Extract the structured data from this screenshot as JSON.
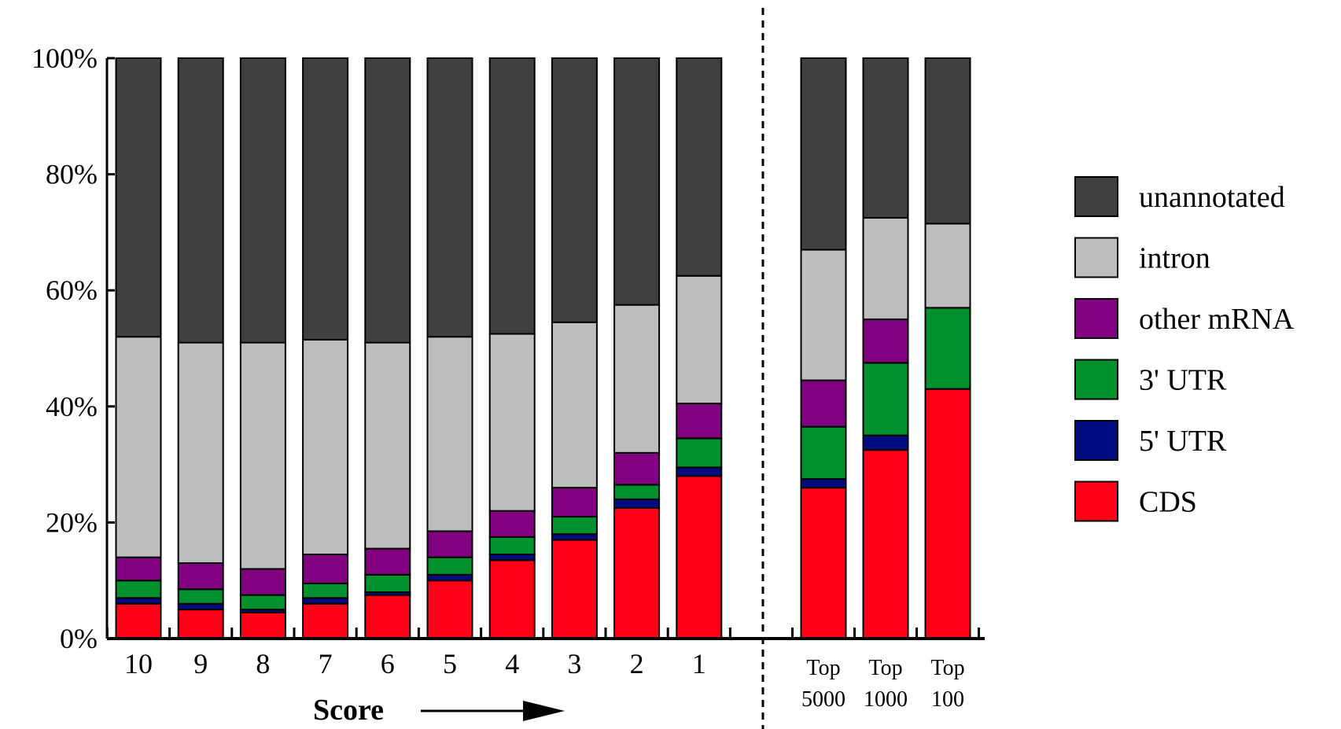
{
  "chart_data": {
    "type": "bar",
    "stacked": true,
    "xlabel": "Score",
    "ylabel": "",
    "ylim": [
      0,
      100
    ],
    "y_ticks": [
      "0%",
      "20%",
      "40%",
      "60%",
      "80%",
      "100%"
    ],
    "y_tick_values": [
      0,
      20,
      40,
      60,
      80,
      100
    ],
    "legend_position": "right",
    "groups": [
      {
        "categories": [
          "10",
          "9",
          "8",
          "7",
          "6",
          "5",
          "4",
          "3",
          "2",
          "1"
        ],
        "series": [
          {
            "name": "CDS",
            "color": "#ff0016",
            "values": [
              6,
              5,
              4.5,
              6,
              7.5,
              10,
              13.5,
              17,
              22.5,
              28
            ]
          },
          {
            "name": "5' UTR",
            "color": "#000c80",
            "values": [
              1,
              1,
              0.5,
              1,
              0.5,
              1,
              1,
              1,
              1.5,
              1.5
            ]
          },
          {
            "name": "3' UTR",
            "color": "#00902e",
            "values": [
              3,
              2.5,
              2.5,
              2.5,
              3,
              3,
              3,
              3,
              2.5,
              5
            ]
          },
          {
            "name": "other mRNA",
            "color": "#800080",
            "values": [
              4,
              4.5,
              4.5,
              5,
              4.5,
              4.5,
              4.5,
              5,
              5.5,
              6
            ]
          },
          {
            "name": "intron",
            "color": "#bebebe",
            "values": [
              38,
              38,
              39,
              37,
              35.5,
              33.5,
              30.5,
              28.5,
              25.5,
              22
            ]
          },
          {
            "name": "unannotated",
            "color": "#404040",
            "values": [
              48,
              49,
              49,
              48.5,
              49,
              48,
              47.5,
              45.5,
              42.5,
              37.5
            ]
          }
        ]
      },
      {
        "categories": [
          "Top 5000",
          "Top 1000",
          "Top 100"
        ],
        "category_lines": [
          [
            "Top",
            "5000"
          ],
          [
            "Top",
            "1000"
          ],
          [
            "Top",
            "100"
          ]
        ],
        "series": [
          {
            "name": "CDS",
            "color": "#ff0016",
            "values": [
              26,
              32.5,
              43
            ]
          },
          {
            "name": "5' UTR",
            "color": "#000c80",
            "values": [
              1.5,
              2.5,
              0
            ]
          },
          {
            "name": "3' UTR",
            "color": "#00902e",
            "values": [
              9,
              12.5,
              14
            ]
          },
          {
            "name": "other mRNA",
            "color": "#800080",
            "values": [
              8,
              7.5,
              0
            ]
          },
          {
            "name": "intron",
            "color": "#bebebe",
            "values": [
              22.5,
              17.5,
              14.5
            ]
          },
          {
            "name": "unannotated",
            "color": "#404040",
            "values": [
              33,
              27.5,
              28.5
            ]
          }
        ]
      }
    ],
    "legend": [
      {
        "name": "unannotated",
        "color": "#404040"
      },
      {
        "name": "intron",
        "color": "#bebebe"
      },
      {
        "name": "other mRNA",
        "color": "#800080"
      },
      {
        "name": "3' UTR",
        "color": "#00902e"
      },
      {
        "name": "5' UTR",
        "color": "#000c80"
      },
      {
        "name": "CDS",
        "color": "#ff0016"
      }
    ]
  }
}
